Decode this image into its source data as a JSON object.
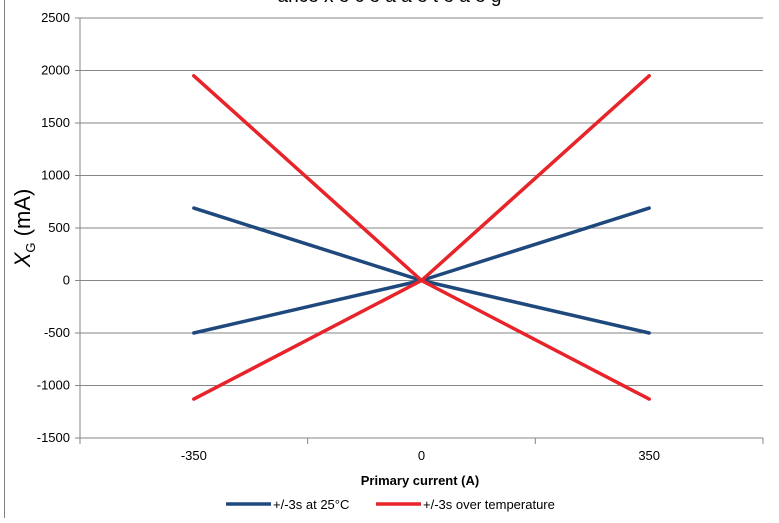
{
  "chart_data": {
    "type": "line",
    "title_fragment": "ance     x        e   c e a     a    e   t        e   a   e       g",
    "xlabel": "Primary current (A)",
    "ylabel_symbol": "X",
    "ylabel_subscript": "G",
    "ylabel_unit": " (mA)",
    "x_ticks": [
      "-350",
      "0",
      "350"
    ],
    "x_tick_values": [
      -350,
      0,
      350
    ],
    "xlim": [
      -525,
      525
    ],
    "y_ticks": [
      "2500",
      "2000",
      "1500",
      "1000",
      "500",
      "0",
      "-500",
      "-1000",
      "-1500"
    ],
    "ylim": [
      -1500,
      2500
    ],
    "grid": "horizontal",
    "legend_position": "bottom",
    "series": [
      {
        "name": "+/-3s at 25°C",
        "color": "#1f497d",
        "legend": true,
        "points": [
          [
            -350,
            690
          ],
          [
            0,
            0
          ],
          [
            350,
            -500
          ]
        ]
      },
      {
        "name": "+/-3s at 25°C",
        "color": "#1f497d",
        "legend": false,
        "points": [
          [
            -350,
            -500
          ],
          [
            0,
            0
          ],
          [
            350,
            690
          ]
        ]
      },
      {
        "name": "+/-3s over temperature",
        "color": "#e8232a",
        "legend": true,
        "points": [
          [
            -350,
            1950
          ],
          [
            0,
            0
          ],
          [
            350,
            -1130
          ]
        ]
      },
      {
        "name": "+/-3s over temperature",
        "color": "#e8232a",
        "legend": false,
        "points": [
          [
            -350,
            -1130
          ],
          [
            0,
            0
          ],
          [
            350,
            1950
          ]
        ]
      }
    ]
  }
}
